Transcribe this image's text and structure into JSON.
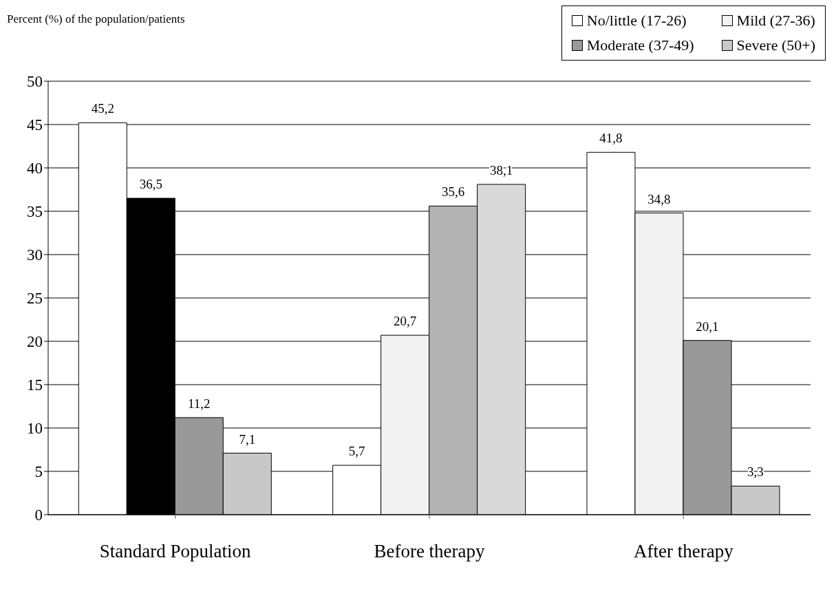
{
  "chart_data": {
    "type": "bar",
    "ylabel": "Percent (%) of the population/patients",
    "categories": [
      "Standard Population",
      "Before therapy",
      "After therapy"
    ],
    "series": [
      {
        "name": "No/little (17-26)",
        "color": "#ffffff",
        "values": [
          45.2,
          5.7,
          41.8
        ],
        "value_labels": [
          "45,2",
          "5,7",
          "41,8"
        ]
      },
      {
        "name": "Mild (27-36)",
        "color": "#f2f2f2",
        "colors": [
          "#000000",
          "#f2f2f2",
          "#f2f2f2"
        ],
        "values": [
          36.5,
          20.7,
          34.8
        ],
        "value_labels": [
          "36,5",
          "20,7",
          "34,8"
        ]
      },
      {
        "name": "Moderate (37-49)",
        "color": "#999999",
        "colors": [
          "#999999",
          "#b3b3b3",
          "#999999"
        ],
        "values": [
          11.2,
          35.6,
          20.1
        ],
        "value_labels": [
          "11,2",
          "35,6",
          "20,1"
        ]
      },
      {
        "name": "Severe (50+)",
        "color": "#c8c8c8",
        "colors": [
          "#c8c8c8",
          "#d9d9d9",
          "#c8c8c8"
        ],
        "values": [
          7.1,
          38.1,
          3.3
        ],
        "value_labels": [
          "7,1",
          "38,1",
          "3,3"
        ]
      }
    ],
    "ylim": [
      0,
      50
    ],
    "yticks": [
      0,
      5,
      10,
      15,
      20,
      25,
      30,
      35,
      40,
      45,
      50
    ],
    "grid": "y",
    "legend": "top right"
  }
}
